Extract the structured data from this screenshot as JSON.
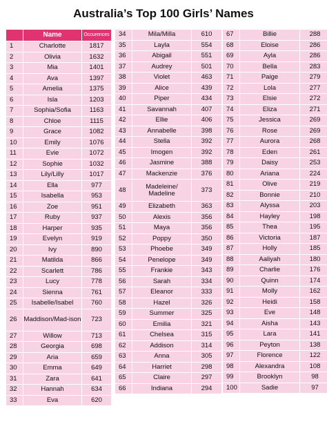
{
  "title": "Australia’s Top 100 Girls’ Names",
  "header": {
    "name": "Name",
    "occurrences": "Occurences"
  },
  "columns": [
    [
      {
        "rank": "1",
        "name": "Charlotte",
        "count": "1817"
      },
      {
        "rank": "2",
        "name": "Olivia",
        "count": "1632"
      },
      {
        "rank": "3",
        "name": "Mia",
        "count": "1401"
      },
      {
        "rank": "4",
        "name": "Ava",
        "count": "1397"
      },
      {
        "rank": "5",
        "name": "Amelia",
        "count": "1375"
      },
      {
        "rank": "6",
        "name": "Isla",
        "count": "1203"
      },
      {
        "rank": "7",
        "name": "Sophia/Sofia",
        "count": "1163"
      },
      {
        "rank": "8",
        "name": "Chloe",
        "count": "1115"
      },
      {
        "rank": "9",
        "name": "Grace",
        "count": "1082"
      },
      {
        "rank": "10",
        "name": "Emily",
        "count": "1076"
      },
      {
        "rank": "11",
        "name": "Evie",
        "count": "1072"
      },
      {
        "rank": "12",
        "name": "Sophie",
        "count": "1032"
      },
      {
        "rank": "13",
        "name": "Lily/Lilly",
        "count": "1017"
      },
      {
        "rank": "14",
        "name": "Ella",
        "count": "977"
      },
      {
        "rank": "15",
        "name": "Isabella",
        "count": "953"
      },
      {
        "rank": "16",
        "name": "Zoe",
        "count": "951"
      },
      {
        "rank": "17",
        "name": "Ruby",
        "count": "937"
      },
      {
        "rank": "18",
        "name": "Harper",
        "count": "935"
      },
      {
        "rank": "19",
        "name": "Evelyn",
        "count": "919"
      },
      {
        "rank": "20",
        "name": "Ivy",
        "count": "890"
      },
      {
        "rank": "21",
        "name": "Matilda",
        "count": "866"
      },
      {
        "rank": "22",
        "name": "Scarlett",
        "count": "786"
      },
      {
        "rank": "23",
        "name": "Lucy",
        "count": "778"
      },
      {
        "rank": "24",
        "name": "Sienna",
        "count": "761"
      },
      {
        "rank": "25",
        "name": "Isabelle/Isabel",
        "count": "760"
      },
      {
        "rank": "26",
        "name": "Maddison/Mad-ison",
        "count": "723",
        "tall": true
      },
      {
        "rank": "27",
        "name": "Willow",
        "count": "713"
      },
      {
        "rank": "28",
        "name": "Georgia",
        "count": "698"
      },
      {
        "rank": "29",
        "name": "Aria",
        "count": "659"
      },
      {
        "rank": "30",
        "name": "Emma",
        "count": "649"
      },
      {
        "rank": "31",
        "name": "Zara",
        "count": "641"
      },
      {
        "rank": "32",
        "name": "Hannah",
        "count": "634"
      },
      {
        "rank": "33",
        "name": "Eva",
        "count": "620"
      }
    ],
    [
      {
        "rank": "34",
        "name": "Mila/Milla",
        "count": "610"
      },
      {
        "rank": "35",
        "name": "Layla",
        "count": "554"
      },
      {
        "rank": "36",
        "name": "Abigail",
        "count": "551"
      },
      {
        "rank": "37",
        "name": "Audrey",
        "count": "501"
      },
      {
        "rank": "38",
        "name": "Violet",
        "count": "463"
      },
      {
        "rank": "39",
        "name": "Alice",
        "count": "439"
      },
      {
        "rank": "40",
        "name": "Piper",
        "count": "434"
      },
      {
        "rank": "41",
        "name": "Savannah",
        "count": "407"
      },
      {
        "rank": "42",
        "name": "Ellie",
        "count": "406"
      },
      {
        "rank": "43",
        "name": "Annabelle",
        "count": "398"
      },
      {
        "rank": "44",
        "name": "Stella",
        "count": "392"
      },
      {
        "rank": "45",
        "name": "Imogen",
        "count": "392"
      },
      {
        "rank": "46",
        "name": "Jasmine",
        "count": "388"
      },
      {
        "rank": "47",
        "name": "Mackenzie",
        "count": "376"
      },
      {
        "rank": "48",
        "name": "Madeleine/ Madeline",
        "count": "373",
        "tall": true
      },
      {
        "rank": "49",
        "name": "Elizabeth",
        "count": "363"
      },
      {
        "rank": "50",
        "name": "Alexis",
        "count": "356"
      },
      {
        "rank": "51",
        "name": "Maya",
        "count": "356"
      },
      {
        "rank": "52",
        "name": "Poppy",
        "count": "350"
      },
      {
        "rank": "53",
        "name": "Phoebe",
        "count": "349"
      },
      {
        "rank": "54",
        "name": "Penelope",
        "count": "349"
      },
      {
        "rank": "55",
        "name": "Frankie",
        "count": "343"
      },
      {
        "rank": "56",
        "name": "Sarah",
        "count": "334"
      },
      {
        "rank": "57",
        "name": "Eleanor",
        "count": "333"
      },
      {
        "rank": "58",
        "name": "Hazel",
        "count": "326"
      },
      {
        "rank": "59",
        "name": "Summer",
        "count": "325"
      },
      {
        "rank": "60",
        "name": "Emilia",
        "count": "321"
      },
      {
        "rank": "61",
        "name": "Chelsea",
        "count": "315"
      },
      {
        "rank": "62",
        "name": "Addison",
        "count": "314"
      },
      {
        "rank": "63",
        "name": "Anna",
        "count": "305"
      },
      {
        "rank": "64",
        "name": "Harriet",
        "count": "298"
      },
      {
        "rank": "65",
        "name": "Claire",
        "count": "297"
      },
      {
        "rank": "66",
        "name": "Indiana",
        "count": "294"
      }
    ],
    [
      {
        "rank": "67",
        "name": "Billie",
        "count": "288"
      },
      {
        "rank": "68",
        "name": "Eloise",
        "count": "286"
      },
      {
        "rank": "69",
        "name": "Ayla",
        "count": "286"
      },
      {
        "rank": "70",
        "name": "Bella",
        "count": "283"
      },
      {
        "rank": "71",
        "name": "Paige",
        "count": "279"
      },
      {
        "rank": "72",
        "name": "Lola",
        "count": "277"
      },
      {
        "rank": "73",
        "name": "Elsie",
        "count": "272"
      },
      {
        "rank": "74",
        "name": "Eliza",
        "count": "271"
      },
      {
        "rank": "75",
        "name": "Jessica",
        "count": "269"
      },
      {
        "rank": "76",
        "name": "Rose",
        "count": "269"
      },
      {
        "rank": "77",
        "name": "Aurora",
        "count": "268"
      },
      {
        "rank": "78",
        "name": "Eden",
        "count": "261"
      },
      {
        "rank": "79",
        "name": "Daisy",
        "count": "253"
      },
      {
        "rank": "80",
        "name": "Ariana",
        "count": "224"
      },
      {
        "rank": "81",
        "name": "Olive",
        "count": "219"
      },
      {
        "rank": "82",
        "name": "Bonnie",
        "count": "210"
      },
      {
        "rank": "83",
        "name": "Alyssa",
        "count": "203"
      },
      {
        "rank": "84",
        "name": "Hayley",
        "count": "198"
      },
      {
        "rank": "85",
        "name": "Thea",
        "count": "195"
      },
      {
        "rank": "86",
        "name": "Victoria",
        "count": "187"
      },
      {
        "rank": "87",
        "name": "Holly",
        "count": "185"
      },
      {
        "rank": "88",
        "name": "Aaliyah",
        "count": "180"
      },
      {
        "rank": "89",
        "name": "Charlie",
        "count": "176"
      },
      {
        "rank": "90",
        "name": "Quinn",
        "count": "174"
      },
      {
        "rank": "91",
        "name": "Molly",
        "count": "162"
      },
      {
        "rank": "92",
        "name": "Heidi",
        "count": "158"
      },
      {
        "rank": "93",
        "name": "Eve",
        "count": "148"
      },
      {
        "rank": "94",
        "name": "Aisha",
        "count": "143"
      },
      {
        "rank": "95",
        "name": "Lara",
        "count": "141"
      },
      {
        "rank": "96",
        "name": "Peyton",
        "count": "138"
      },
      {
        "rank": "97",
        "name": "Florence",
        "count": "122"
      },
      {
        "rank": "98",
        "name": "Alexandra",
        "count": "108"
      },
      {
        "rank": "99",
        "name": "Brooklyn",
        "count": "98"
      },
      {
        "rank": "100",
        "name": "Sadie",
        "count": "97"
      }
    ]
  ]
}
